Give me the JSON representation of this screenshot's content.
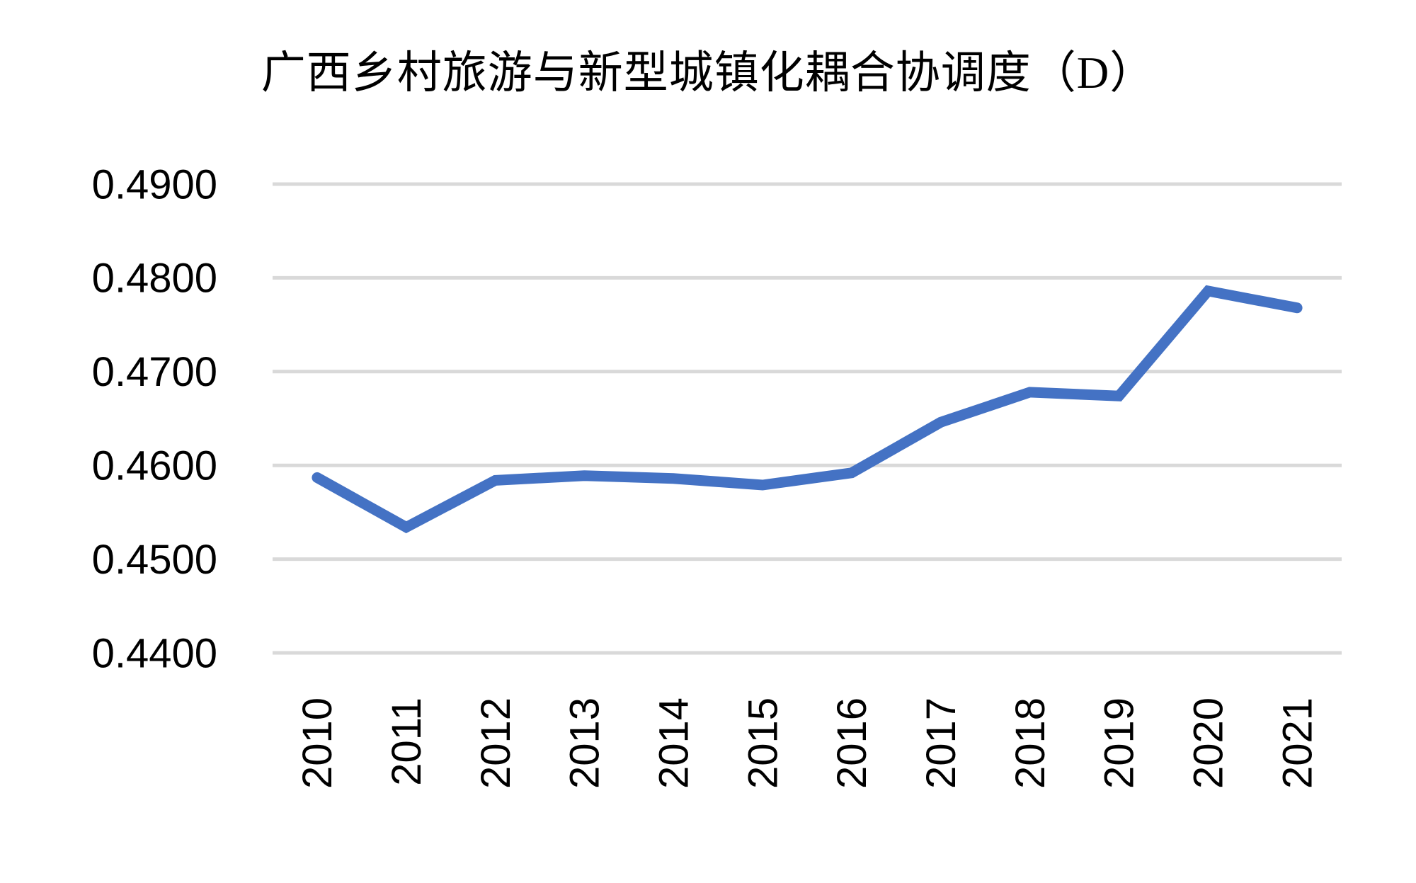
{
  "page": {
    "background_color": "#FFFFFF"
  },
  "chart_data": {
    "type": "line",
    "title": "广西乡村旅游与新型城镇化耦合协调度（D）",
    "categories": [
      "2010",
      "2011",
      "2012",
      "2013",
      "2014",
      "2015",
      "2016",
      "2017",
      "2018",
      "2019",
      "2020",
      "2021"
    ],
    "values": [
      0.4587,
      0.4534,
      0.4584,
      0.4589,
      0.4586,
      0.4579,
      0.4592,
      0.4646,
      0.4678,
      0.4674,
      0.4786,
      0.4768
    ],
    "xlabel": "",
    "ylabel": "",
    "ylim": [
      0.44,
      0.49
    ],
    "ytick_step": 0.01,
    "ytick_labels": [
      "0.4900",
      "0.4800",
      "0.4700",
      "0.4600",
      "0.4500",
      "0.4400"
    ],
    "grid": true,
    "legend_position": "none",
    "x_label_rotation": -90,
    "line_color": "#4472C4",
    "gridline_color": "#D9D9D9",
    "text_color": "#000000"
  }
}
